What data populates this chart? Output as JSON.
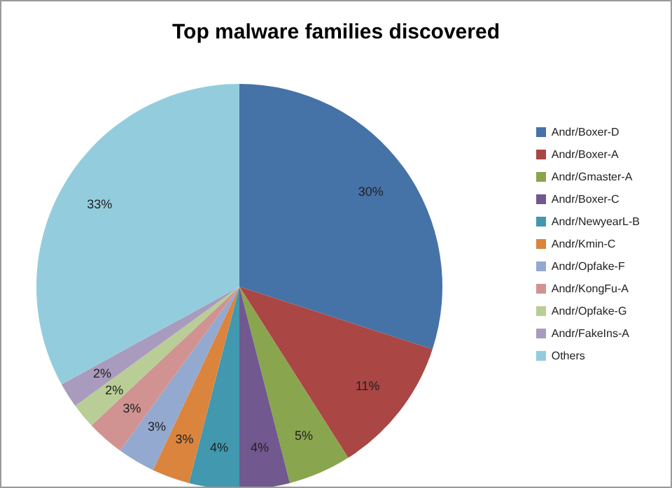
{
  "chart_data": {
    "type": "pie",
    "title": "Top malware families discovered",
    "categories": [
      "Andr/Boxer-D",
      "Andr/Boxer-A",
      "Andr/Gmaster-A",
      "Andr/Boxer-C",
      "Andr/NewyearL-B",
      "Andr/Kmin-C",
      "Andr/Opfake-F",
      "Andr/KongFu-A",
      "Andr/Opfake-G",
      "Andr/FakeIns-A",
      "Others"
    ],
    "values": [
      30,
      11,
      5,
      4,
      4,
      3,
      3,
      3,
      2,
      2,
      33
    ],
    "value_labels": [
      "30%",
      "11%",
      "5%",
      "4%",
      "4%",
      "3%",
      "3%",
      "3%",
      "2%",
      "2%",
      "33%"
    ],
    "colors": [
      "#4572a7",
      "#aa4643",
      "#89a54e",
      "#71588f",
      "#4198af",
      "#db843d",
      "#93a9cf",
      "#d19392",
      "#b9cd96",
      "#a99bbd",
      "#93cddd"
    ],
    "legend": "right"
  }
}
